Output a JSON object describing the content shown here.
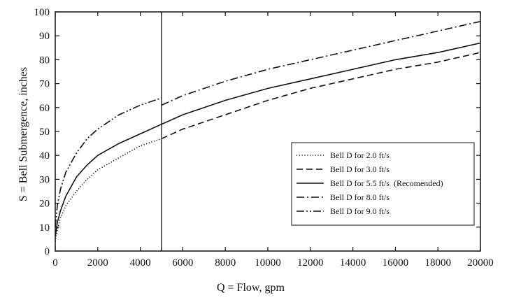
{
  "chart_data": {
    "type": "line",
    "title": "",
    "xlabel": "Q = Flow, gpm",
    "ylabel": "S = Bell Submergence, inches",
    "xlim": [
      0,
      20000
    ],
    "ylim": [
      0,
      100
    ],
    "xticks": [
      0,
      2000,
      4000,
      5000,
      6000,
      8000,
      10000,
      12000,
      14000,
      16000,
      18000,
      20000
    ],
    "xtick_labels": [
      "0",
      "2000",
      "4000",
      "",
      "6000",
      "8000",
      "10000",
      "12000",
      "14000",
      "16000",
      "18000",
      "20000"
    ],
    "yticks": [
      0,
      10,
      20,
      30,
      40,
      50,
      60,
      70,
      80,
      90,
      100
    ],
    "grid": false,
    "legend_position": "bottom-right",
    "vertical_line_x": 5000,
    "series": [
      {
        "name": "Bell D for 2.0 ft/s",
        "style": "dotted",
        "x": [
          0,
          100,
          250,
          500,
          1000,
          1500,
          2000,
          3000,
          4000,
          5000
        ],
        "y": [
          4,
          9,
          14,
          19,
          25,
          30,
          34,
          39,
          44,
          47
        ]
      },
      {
        "name": "Bell D for 3.0 ft/s",
        "style": "dashed",
        "x": [
          5000,
          6000,
          8000,
          10000,
          12000,
          14000,
          16000,
          18000,
          20000
        ],
        "y": [
          47,
          51,
          57,
          63,
          68,
          72,
          76,
          79,
          83
        ]
      },
      {
        "name": "Bell D for 5.5 ft/s  (Recomended)",
        "style": "solid",
        "x": [
          0,
          100,
          250,
          500,
          1000,
          1500,
          2000,
          3000,
          4000,
          5000,
          6000,
          8000,
          10000,
          12000,
          14000,
          16000,
          18000,
          20000
        ],
        "y": [
          6,
          12,
          17,
          23,
          31,
          36,
          40,
          45,
          49,
          53,
          57,
          63,
          68,
          72,
          76,
          80,
          83,
          87
        ]
      },
      {
        "name": "Bell D for 8.0 ft/s",
        "style": "dashdot",
        "x": [
          5000,
          6000,
          8000,
          10000,
          12000,
          14000,
          16000,
          18000,
          20000
        ],
        "y": [
          61,
          65,
          71,
          76,
          80,
          84,
          88,
          92,
          96
        ]
      },
      {
        "name": "Bell D for 9.0 ft/s",
        "style": "dashdotdot",
        "x": [
          0,
          100,
          250,
          500,
          1000,
          1500,
          2000,
          3000,
          4000,
          5000
        ],
        "y": [
          10,
          19,
          26,
          33,
          41,
          47,
          51,
          57,
          61,
          64
        ]
      }
    ]
  }
}
